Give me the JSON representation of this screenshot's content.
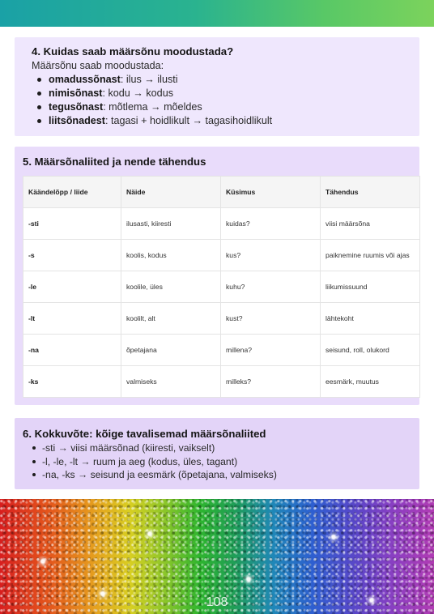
{
  "section4": {
    "title": "4. Kuidas saab määrsõnu moodustada?",
    "intro": "Määrsõnu saab moodustada:",
    "items": [
      {
        "term": "omadussõnast",
        "text": ": ilus → ilusti"
      },
      {
        "term": "nimisõnast",
        "text": ": kodu → kodus"
      },
      {
        "term": "tegusõnast",
        "text": ": mõtlema → mõeldes"
      },
      {
        "term": "liitsõnadest",
        "text": ": tagasi + hoidlikult → tagasihoidlikult"
      }
    ]
  },
  "section5": {
    "title": "5. Määrsõnaliited ja nende tähendus",
    "headers": [
      "Käändelõpp / liide",
      "Näide",
      "Küsimus",
      "Tähendus"
    ],
    "rows": [
      [
        "-sti",
        "ilusasti, kiiresti",
        "kuidas?",
        "viisi määrsõna"
      ],
      [
        "-s",
        "koolis, kodus",
        "kus?",
        "paiknemine ruumis või ajas"
      ],
      [
        "-le",
        "koolile, üles",
        "kuhu?",
        "liikumissuund"
      ],
      [
        "-lt",
        "koolilt, alt",
        "kust?",
        "lähtekoht"
      ],
      [
        "-na",
        "õpetajana",
        "millena?",
        "seisund, roll, olukord"
      ],
      [
        "-ks",
        "valmiseks",
        "milleks?",
        "eesmärk, muutus"
      ]
    ]
  },
  "section6": {
    "title": "6. Kokkuvõte: kõige tavalisemad määrsõnaliited",
    "items": [
      "-sti → viisi määrsõnad (kiiresti, vaikselt)",
      "-l, -le, -lt → ruum ja aeg (kodus, üles, tagant)",
      "-na, -ks → seisund ja eesmärk (õpetajana, valmiseks)"
    ]
  },
  "footer": {
    "page_number": "108"
  }
}
